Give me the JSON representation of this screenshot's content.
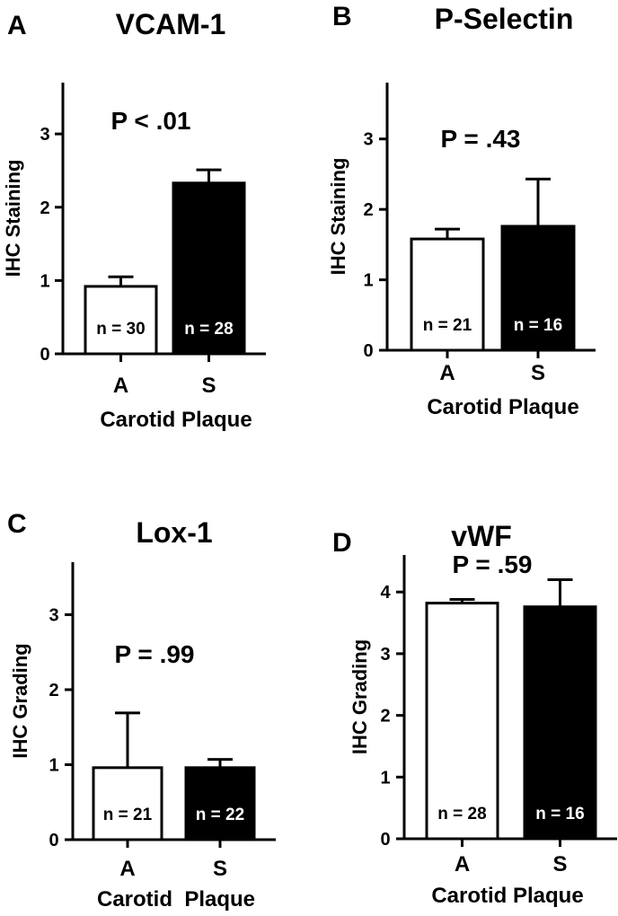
{
  "chart_data": [
    {
      "panel": "A",
      "type": "bar",
      "title": "VCAM-1",
      "ylabel": "IHC Staining",
      "xlabel": "Carotid Plaque",
      "categories": [
        "A",
        "S"
      ],
      "values": [
        0.92,
        2.33
      ],
      "errors": [
        0.13,
        0.18
      ],
      "n_labels": [
        "n = 30",
        "n = 28"
      ],
      "bar_colors": [
        "#ffffff",
        "#000000"
      ],
      "annotation": "P < .01",
      "ylim": [
        0,
        3.7
      ],
      "yticks": [
        "0",
        "1",
        "2",
        "3"
      ]
    },
    {
      "panel": "B",
      "type": "bar",
      "title": "P-Selectin",
      "ylabel": "IHC Staining",
      "xlabel": "Carotid Plaque",
      "categories": [
        "A",
        "S"
      ],
      "values": [
        1.58,
        1.76
      ],
      "errors": [
        0.14,
        0.67
      ],
      "n_labels": [
        "n = 21",
        "n = 16"
      ],
      "bar_colors": [
        "#ffffff",
        "#000000"
      ],
      "annotation": "P = .43",
      "ylim": [
        0,
        3.8
      ],
      "yticks": [
        "0",
        "1",
        "2",
        "3"
      ]
    },
    {
      "panel": "C",
      "type": "bar",
      "title": "Lox-1",
      "ylabel": "IHC Grading",
      "xlabel": "Carotid  Plaque",
      "categories": [
        "A",
        "S"
      ],
      "values": [
        0.96,
        0.96
      ],
      "errors": [
        0.73,
        0.11
      ],
      "n_labels": [
        "n = 21",
        "n = 22"
      ],
      "bar_colors": [
        "#ffffff",
        "#000000"
      ],
      "annotation": "P = .99",
      "ylim": [
        0,
        3.7
      ],
      "yticks": [
        "0",
        "1",
        "2",
        "3"
      ]
    },
    {
      "panel": "D",
      "type": "bar",
      "title": "vWF",
      "ylabel": "IHC Grading",
      "xlabel": "Carotid Plaque",
      "categories": [
        "A",
        "S"
      ],
      "values": [
        3.82,
        3.76
      ],
      "errors": [
        0.06,
        0.44
      ],
      "n_labels": [
        "n = 28",
        "n = 16"
      ],
      "bar_colors": [
        "#ffffff",
        "#000000"
      ],
      "annotation": "P = .59",
      "ylim": [
        0,
        4.6
      ],
      "yticks": [
        "0",
        "1",
        "2",
        "3",
        "4"
      ]
    }
  ]
}
